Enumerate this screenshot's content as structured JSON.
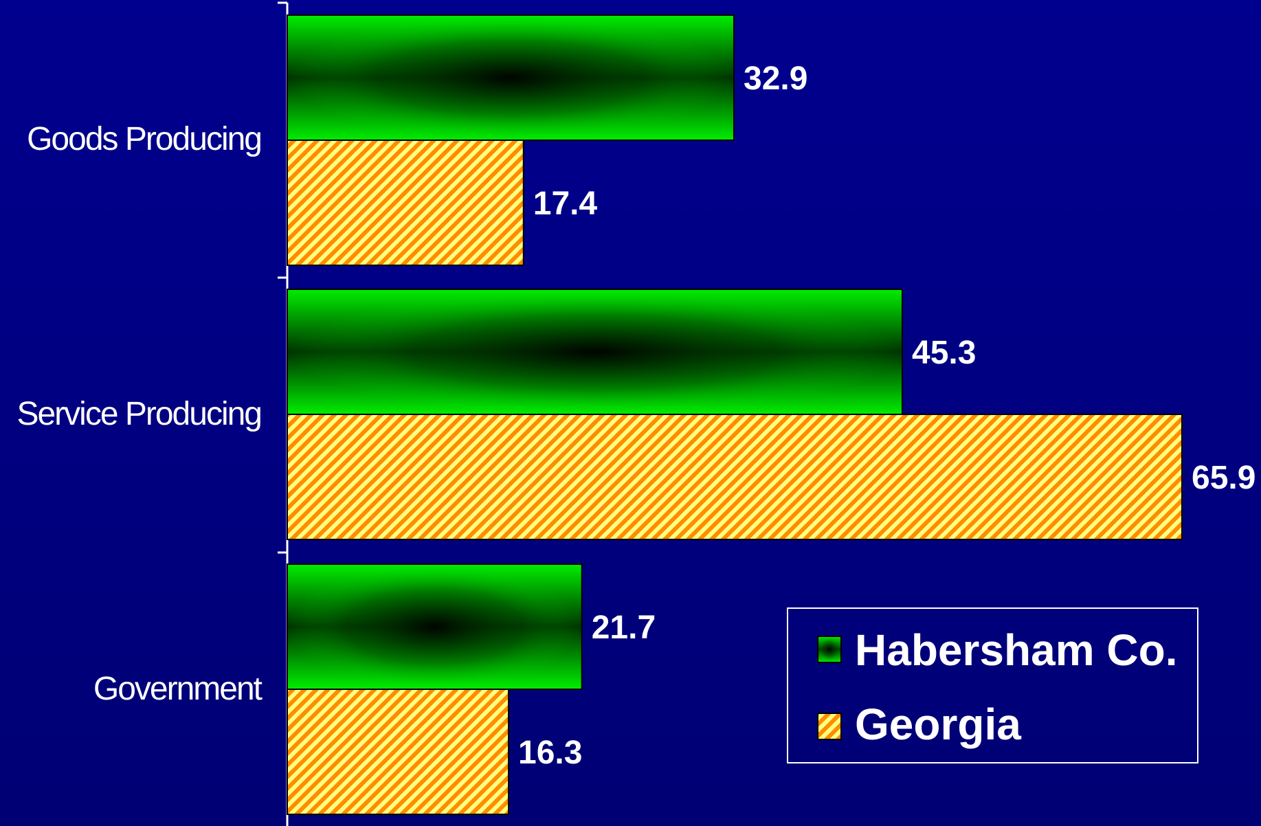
{
  "chart_data": {
    "type": "bar",
    "orientation": "horizontal",
    "categories": [
      "Goods Producing",
      "Service Producing",
      "Government"
    ],
    "series": [
      {
        "name": "Habersham Co.",
        "values": [
          32.9,
          45.3,
          21.7
        ],
        "color": "#00ee00"
      },
      {
        "name": "Georgia",
        "values": [
          17.4,
          65.9,
          16.3
        ],
        "color": "#ff8c00"
      }
    ],
    "value_labels": [
      [
        "32.9",
        "45.3",
        "21.7"
      ],
      [
        "17.4",
        "65.9",
        "16.3"
      ]
    ],
    "xlim": [
      0,
      66
    ],
    "grid": false,
    "legend": {
      "position": "bottom-right"
    }
  },
  "colors": {
    "background": "#000080",
    "habersham_fill": "#00ee00",
    "georgia_stripe_a": "#ff8c00",
    "georgia_stripe_b": "#ffff80"
  }
}
